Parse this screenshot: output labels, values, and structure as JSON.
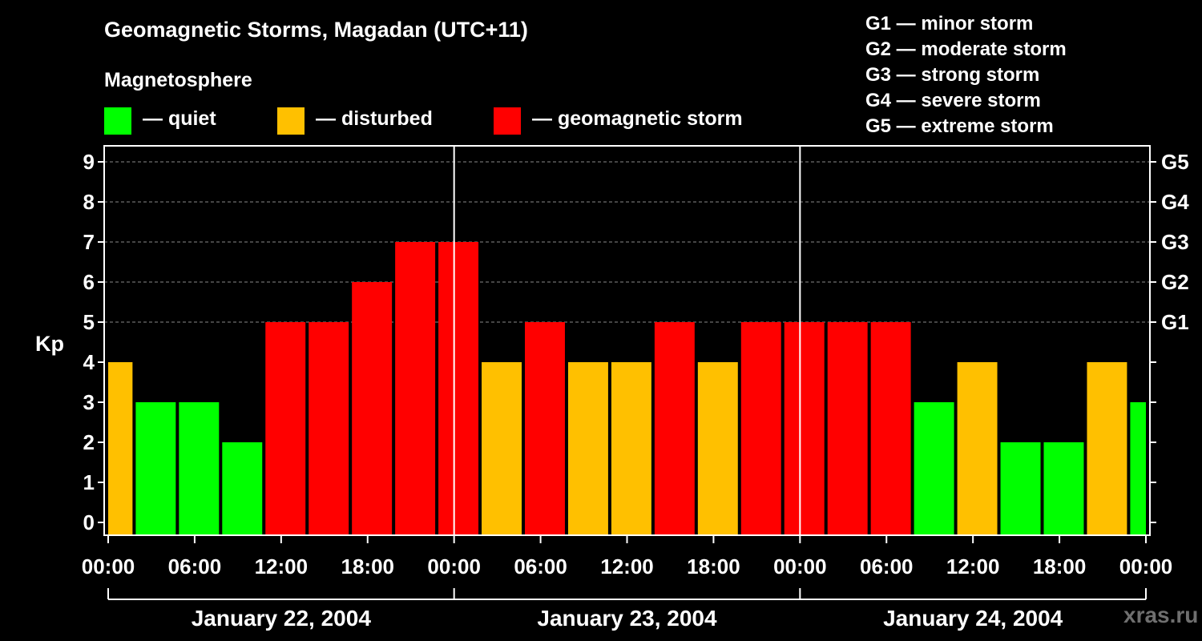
{
  "header": {
    "title": "Geomagnetic Storms, Magadan (UTC+11)",
    "subtitle": "Magnetosphere",
    "watermark": "xras.ru"
  },
  "legend": [
    {
      "label": "— quiet",
      "color": "#00ff00"
    },
    {
      "label": "— disturbed",
      "color": "#ffc000"
    },
    {
      "label": "— geomagnetic storm",
      "color": "#ff0000"
    }
  ],
  "storm_scale": [
    "G1 — minor storm",
    "G2 — moderate storm",
    "G3 — strong storm",
    "G4 — severe storm",
    "G5 — extreme storm"
  ],
  "colors": {
    "quiet": "#00ff00",
    "disturbed": "#ffc000",
    "storm": "#ff0000",
    "axis": "#ffffff",
    "grid": "#8a8a8a"
  },
  "chart_data": {
    "type": "bar",
    "title": "Geomagnetic Storms, Magadan (UTC+11)",
    "ylabel": "Kp",
    "xlabel": "",
    "ylim": [
      0,
      9
    ],
    "y_ticks": [
      0,
      1,
      2,
      3,
      4,
      5,
      6,
      7,
      8,
      9
    ],
    "right_ticks": [
      {
        "kp": 9,
        "label": "G5"
      },
      {
        "kp": 8,
        "label": "G4"
      },
      {
        "kp": 7,
        "label": "G3"
      },
      {
        "kp": 6,
        "label": "G2"
      },
      {
        "kp": 5,
        "label": "G1"
      }
    ],
    "x_range_hours": [
      0,
      72
    ],
    "x_tick_labels": [
      "00:00",
      "06:00",
      "12:00",
      "18:00",
      "00:00",
      "06:00",
      "12:00",
      "18:00",
      "00:00",
      "06:00",
      "12:00",
      "18:00",
      "00:00"
    ],
    "days": [
      "January 22, 2004",
      "January 23, 2004",
      "January 24, 2004"
    ],
    "series": [
      {
        "name": "Kp",
        "bars": [
          {
            "start": 0,
            "end": 1.8,
            "value": 4
          },
          {
            "start": 1.8,
            "end": 4.8,
            "value": 3
          },
          {
            "start": 4.8,
            "end": 7.8,
            "value": 3
          },
          {
            "start": 7.8,
            "end": 10.8,
            "value": 2
          },
          {
            "start": 10.8,
            "end": 13.8,
            "value": 5
          },
          {
            "start": 13.8,
            "end": 16.8,
            "value": 5
          },
          {
            "start": 16.8,
            "end": 19.8,
            "value": 6
          },
          {
            "start": 19.8,
            "end": 22.8,
            "value": 7
          },
          {
            "start": 22.8,
            "end": 25.8,
            "value": 7
          },
          {
            "start": 25.8,
            "end": 28.8,
            "value": 4
          },
          {
            "start": 28.8,
            "end": 31.8,
            "value": 5
          },
          {
            "start": 31.8,
            "end": 34.8,
            "value": 4
          },
          {
            "start": 34.8,
            "end": 37.8,
            "value": 4
          },
          {
            "start": 37.8,
            "end": 40.8,
            "value": 5
          },
          {
            "start": 40.8,
            "end": 43.8,
            "value": 4
          },
          {
            "start": 43.8,
            "end": 46.8,
            "value": 5
          },
          {
            "start": 46.8,
            "end": 49.8,
            "value": 5
          },
          {
            "start": 49.8,
            "end": 52.8,
            "value": 5
          },
          {
            "start": 52.8,
            "end": 55.8,
            "value": 5
          },
          {
            "start": 55.8,
            "end": 58.8,
            "value": 3
          },
          {
            "start": 58.8,
            "end": 61.8,
            "value": 4
          },
          {
            "start": 61.8,
            "end": 64.8,
            "value": 2
          },
          {
            "start": 64.8,
            "end": 67.8,
            "value": 2
          },
          {
            "start": 67.8,
            "end": 70.8,
            "value": 4
          },
          {
            "start": 70.8,
            "end": 72,
            "value": 3
          }
        ]
      }
    ]
  }
}
